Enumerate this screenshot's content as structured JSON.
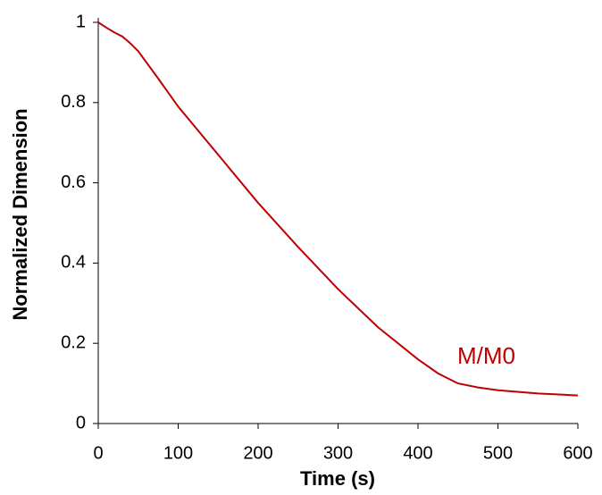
{
  "chart_data": {
    "type": "line",
    "xlabel": "Time (s)",
    "ylabel": "Normalized Dimension",
    "x": [
      0,
      10,
      20,
      30,
      40,
      50,
      75,
      100,
      150,
      200,
      250,
      300,
      350,
      400,
      425,
      450,
      475,
      500,
      550,
      600
    ],
    "series": [
      {
        "name": "M/M0",
        "color": "#c00000",
        "values": [
          1.0,
          0.987,
          0.975,
          0.965,
          0.948,
          0.928,
          0.86,
          0.79,
          0.67,
          0.55,
          0.44,
          0.335,
          0.24,
          0.16,
          0.125,
          0.1,
          0.09,
          0.083,
          0.075,
          0.07
        ]
      }
    ],
    "xlim": [
      0,
      600
    ],
    "ylim": [
      0,
      1
    ],
    "xticks": [
      0,
      100,
      200,
      300,
      400,
      500,
      600
    ],
    "yticks": [
      0,
      0.2,
      0.4,
      0.6,
      0.8,
      1
    ],
    "grid": false
  }
}
